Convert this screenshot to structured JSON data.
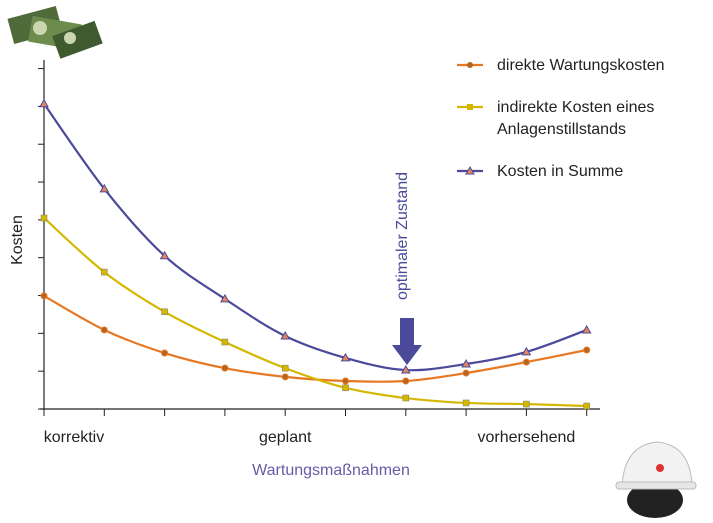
{
  "chart_data": {
    "type": "line",
    "categories": [
      "korrektiv",
      null,
      null,
      null,
      "geplant",
      null,
      null,
      null,
      "vorhersehend",
      null
    ],
    "y_label": "Kosten",
    "x_label": "Wartungsmaßnahmen",
    "annotation": "optimaler Zustand",
    "ylim": [
      0,
      9.2
    ],
    "yticks": [
      0,
      1,
      2,
      3,
      4,
      5,
      6,
      7,
      8,
      9
    ],
    "series": [
      {
        "name": "direkte Wartungskosten",
        "color": "#e87722",
        "marker": "circle",
        "values": [
          2.99,
          2.09,
          1.48,
          1.08,
          0.85,
          0.74,
          0.74,
          0.95,
          1.24,
          1.56
        ]
      },
      {
        "name": "indirekte Kosten eines Anlagenstillstands",
        "color": "#d4b800",
        "marker": "square",
        "values": [
          5.05,
          3.62,
          2.57,
          1.77,
          1.08,
          0.56,
          0.29,
          0.16,
          0.13,
          0.08
        ]
      },
      {
        "name": "Kosten in Summe",
        "color": "#4b4a9a",
        "marker": "triangle",
        "values": [
          8.07,
          5.82,
          4.05,
          2.91,
          1.93,
          1.35,
          1.03,
          1.19,
          1.51,
          2.09
        ]
      }
    ]
  }
}
